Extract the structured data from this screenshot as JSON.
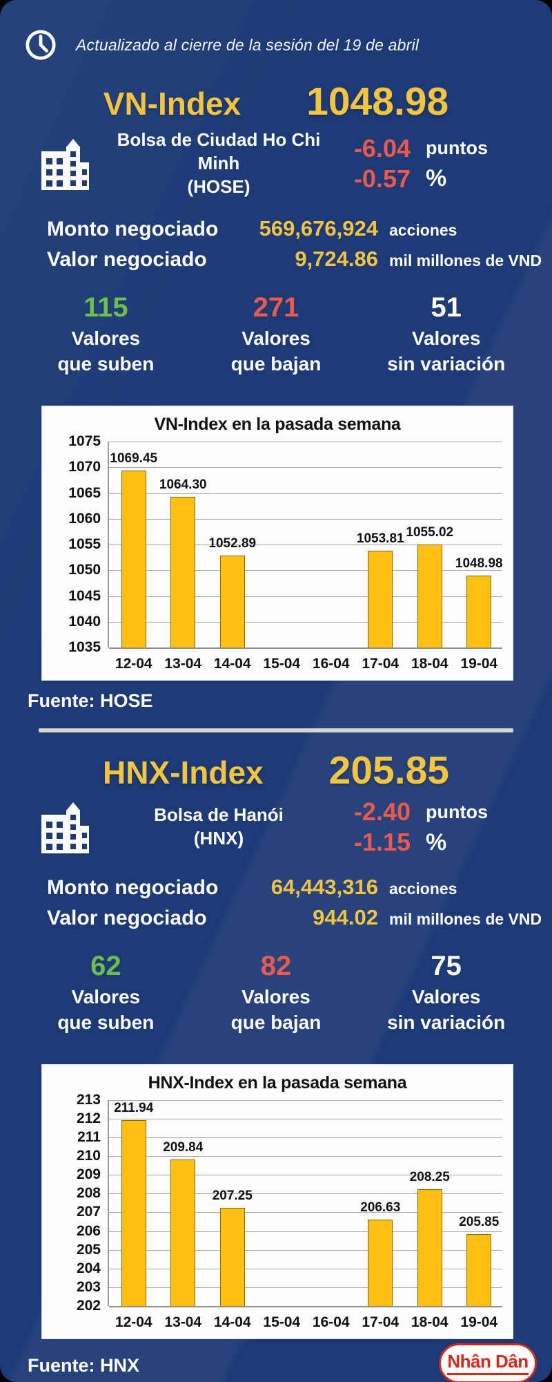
{
  "header": {
    "updated_text": "Actualizado al cierre de la sesión del 19 de abril"
  },
  "colors": {
    "background": "#1d3a76",
    "accent_yellow": "#f3c440",
    "negative_red": "#ec5a4c",
    "positive_green": "#6dbe4b",
    "bar_fill": "#ffc011",
    "panel_white": "#fdfdfd",
    "logo_red": "#d7281d"
  },
  "sections": [
    {
      "index_name": "VN-Index",
      "index_value": "1048.98",
      "exchange_line1": "Bolsa de Ciudad Ho Chi Minh",
      "exchange_line2": "(HOSE)",
      "change_points": "-6.04",
      "points_unit": "puntos",
      "change_percent": "-0.57",
      "percent_unit": "%",
      "volume_label": "Monto negociado",
      "volume_value": "569,676,924",
      "volume_unit": "acciones",
      "value_label": "Valor negociado",
      "value_value": "9,724.86",
      "value_unit": "mil millones de VND",
      "advancers_count": "115",
      "advancers_line1": "Valores",
      "advancers_line2": "que suben",
      "decliners_count": "271",
      "decliners_line1": "Valores",
      "decliners_line2": "que bajan",
      "unchanged_count": "51",
      "unchanged_line1": "Valores",
      "unchanged_line2": "sin variación",
      "source": "Fuente: HOSE"
    },
    {
      "index_name": "HNX-Index",
      "index_value": "205.85",
      "exchange_line1": "Bolsa de Hanói",
      "exchange_line2": "(HNX)",
      "change_points": "-2.40",
      "points_unit": "puntos",
      "change_percent": "-1.15",
      "percent_unit": "%",
      "volume_label": "Monto negociado",
      "volume_value": "64,443,316",
      "volume_unit": "acciones",
      "value_label": "Valor negociado",
      "value_value": "944.02",
      "value_unit": "mil millones de VND",
      "advancers_count": "62",
      "advancers_line1": "Valores",
      "advancers_line2": "que suben",
      "decliners_count": "82",
      "decliners_line1": "Valores",
      "decliners_line2": "que bajan",
      "unchanged_count": "75",
      "unchanged_line1": "Valores",
      "unchanged_line2": "sin variación",
      "source": "Fuente:  HNX"
    }
  ],
  "chart_data": [
    {
      "type": "bar",
      "title": "VN-Index en la pasada semana",
      "categories": [
        "12-04",
        "13-04",
        "14-04",
        "15-04",
        "16-04",
        "17-04",
        "18-04",
        "19-04"
      ],
      "values": [
        1069.45,
        1064.3,
        1052.89,
        null,
        null,
        1053.81,
        1055.02,
        1048.98
      ],
      "data_labels": [
        "1069.45",
        "1064.30",
        "1052.89",
        "",
        "",
        "1053.81",
        "1055.02",
        "1048.98"
      ],
      "ylim": [
        1035,
        1075
      ],
      "ytick_step": 5,
      "grid": true,
      "legend": false,
      "xlabel": "",
      "ylabel": ""
    },
    {
      "type": "bar",
      "title": "HNX-Index en la pasada semana",
      "categories": [
        "12-04",
        "13-04",
        "14-04",
        "15-04",
        "16-04",
        "17-04",
        "18-04",
        "19-04"
      ],
      "values": [
        211.94,
        209.84,
        207.25,
        null,
        null,
        206.63,
        208.25,
        205.85
      ],
      "data_labels": [
        "211.94",
        "209.84",
        "207.25",
        "",
        "",
        "206.63",
        "208.25",
        "205.85"
      ],
      "ylim": [
        202,
        213
      ],
      "ytick_step": 1,
      "grid": true,
      "legend": false,
      "xlabel": "",
      "ylabel": ""
    }
  ],
  "footer": {
    "logo_text": "Nhân Dân"
  }
}
